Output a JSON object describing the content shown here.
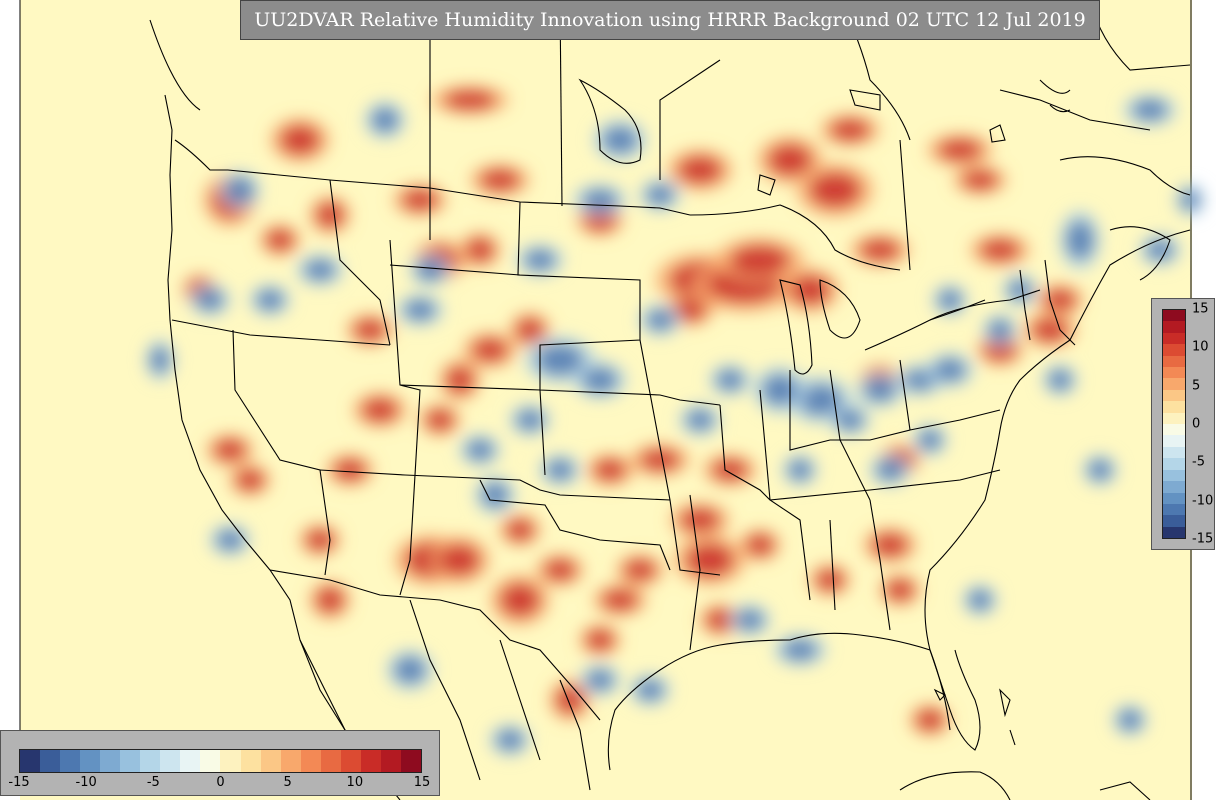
{
  "title": "UU2DVAR Relative Humidity Innovation using HRRR Background 02 UTC 12 Jul 2019",
  "colorbar": {
    "min": -15,
    "max": 15,
    "horizontal_ticks": [
      "-15",
      "-10",
      "-5",
      "0",
      "5",
      "10",
      "15"
    ],
    "vertical_ticks": [
      "15",
      "10",
      "5",
      "0",
      "-5",
      "-10",
      "-15"
    ],
    "colors": [
      "#27366e",
      "#3a5d99",
      "#4d78b0",
      "#6392c2",
      "#7eaad1",
      "#98c1de",
      "#b4d6e8",
      "#cde5ef",
      "#e8f4f4",
      "#f9fbe6",
      "#fdf2bf",
      "#fde1a0",
      "#fbc786",
      "#f8a86c",
      "#f38955",
      "#e86a42",
      "#dc4b32",
      "#c92c27",
      "#b31a22",
      "#8e0b1f"
    ]
  },
  "map": {
    "background_color": "#fff9c2",
    "domain": "CONUS"
  }
}
